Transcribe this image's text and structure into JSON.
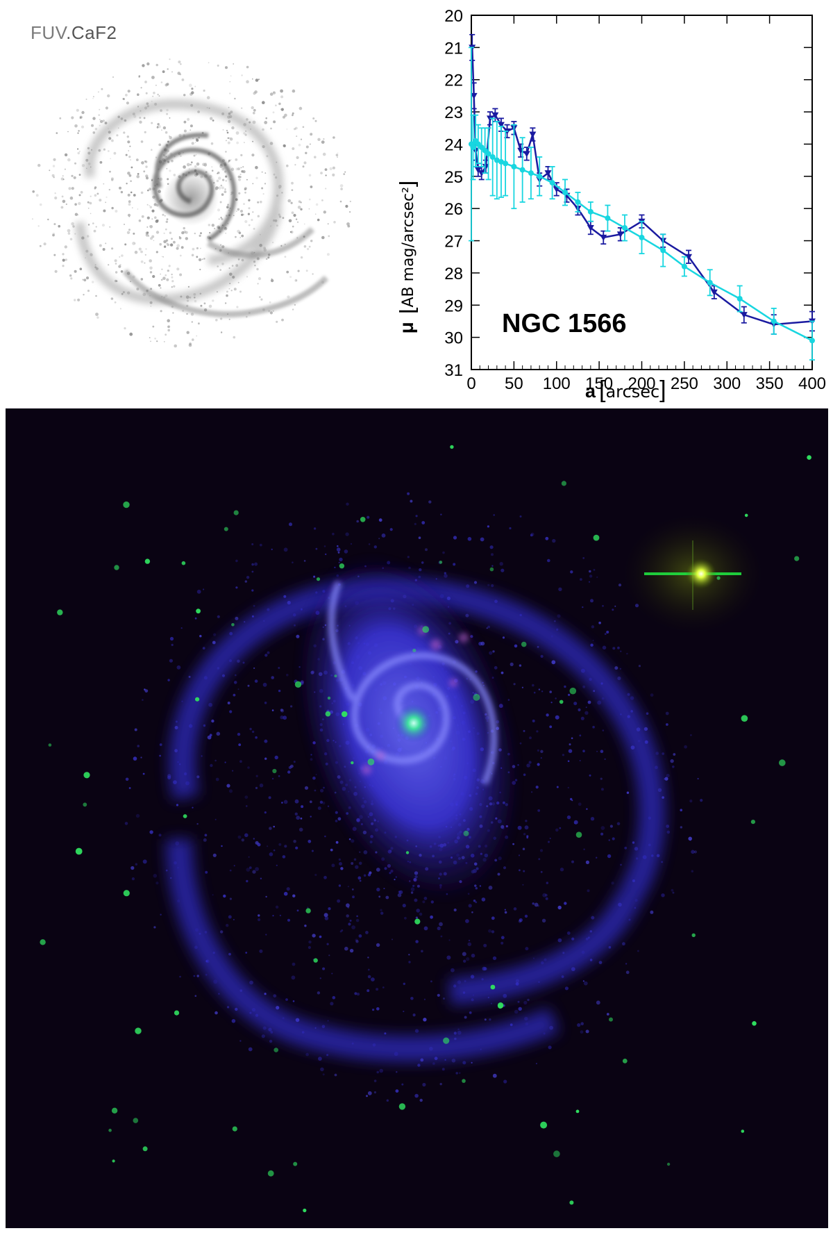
{
  "fuv_panel": {
    "label_prefix": "FUV",
    "label_suffix": ".CaF2"
  },
  "chart_data": {
    "type": "line",
    "title": "NGC 1566",
    "xlabel": "a",
    "xlabel_unit": "arcsec",
    "ylabel": "μ",
    "ylabel_unit": "AB mag/arcsec²",
    "xlim": [
      0,
      400
    ],
    "ylim": [
      31,
      20
    ],
    "y_inverted": true,
    "xticks": [
      0,
      50,
      100,
      150,
      200,
      250,
      300,
      350,
      400
    ],
    "yticks": [
      20,
      21,
      22,
      23,
      24,
      25,
      26,
      27,
      28,
      29,
      30,
      31
    ],
    "grid": false,
    "series": [
      {
        "color": "#1a1aa0",
        "marker": "triangle-down",
        "x": [
          1,
          3,
          5,
          8,
          12,
          17,
          22,
          28,
          35,
          42,
          50,
          58,
          65,
          72,
          80,
          90,
          100,
          112,
          125,
          140,
          155,
          175,
          200,
          225,
          255,
          285,
          320,
          355,
          400
        ],
        "y": [
          21.0,
          22.5,
          24.2,
          24.8,
          24.9,
          24.7,
          23.2,
          23.1,
          23.4,
          23.6,
          23.5,
          24.2,
          24.3,
          23.7,
          25.1,
          24.9,
          25.4,
          25.6,
          26.0,
          26.6,
          26.9,
          26.8,
          26.4,
          27.0,
          27.5,
          28.6,
          29.3,
          29.6,
          29.5
        ],
        "yerr": [
          0.4,
          0.4,
          0.3,
          0.2,
          0.2,
          0.2,
          0.2,
          0.2,
          0.2,
          0.2,
          0.2,
          0.2,
          0.2,
          0.2,
          0.2,
          0.2,
          0.2,
          0.2,
          0.2,
          0.2,
          0.2,
          0.2,
          0.2,
          0.2,
          0.2,
          0.2,
          0.25,
          0.3,
          0.3
        ]
      },
      {
        "color": "#18d6e0",
        "marker": "circle",
        "x": [
          0,
          2,
          5,
          8,
          12,
          16,
          20,
          25,
          30,
          35,
          40,
          50,
          60,
          70,
          80,
          95,
          110,
          125,
          140,
          160,
          180,
          200,
          225,
          250,
          280,
          315,
          355,
          400
        ],
        "y": [
          24.0,
          24.1,
          23.9,
          24.0,
          24.1,
          24.2,
          24.3,
          24.4,
          24.5,
          24.55,
          24.6,
          24.7,
          24.8,
          24.9,
          25.0,
          25.2,
          25.5,
          25.8,
          26.1,
          26.3,
          26.6,
          26.9,
          27.3,
          27.8,
          28.3,
          28.8,
          29.5,
          30.1
        ],
        "yerr": [
          3.0,
          1.0,
          0.8,
          0.6,
          0.6,
          0.7,
          0.8,
          1.2,
          1.2,
          1.1,
          1.0,
          1.3,
          1.0,
          0.8,
          0.6,
          0.5,
          0.4,
          0.3,
          0.3,
          0.4,
          0.4,
          0.5,
          0.5,
          0.3,
          0.4,
          0.4,
          0.4,
          0.6
        ]
      }
    ]
  }
}
